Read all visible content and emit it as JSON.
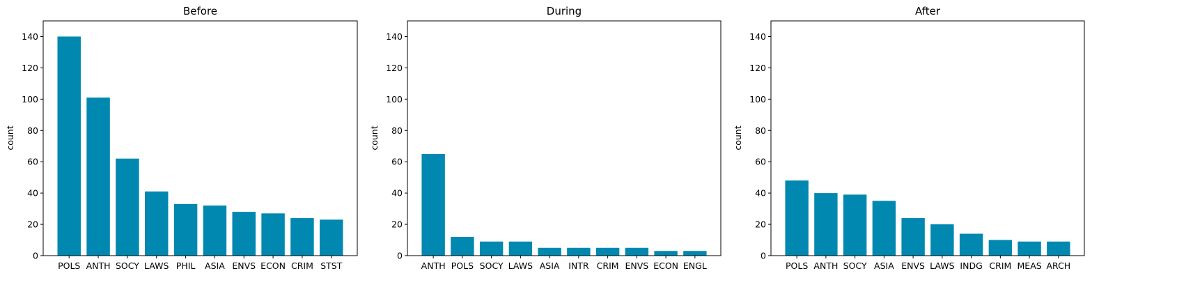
{
  "figure": {
    "bar_color": "#0088b0",
    "charts": [
      {
        "title": "Before",
        "ylabel": "count"
      },
      {
        "title": "During",
        "ylabel": "count"
      },
      {
        "title": "After",
        "ylabel": "count"
      }
    ]
  },
  "chart_data": [
    {
      "type": "bar",
      "title": "Before",
      "xlabel": "",
      "ylabel": "count",
      "ylim": [
        0,
        150
      ],
      "yticks": [
        0,
        20,
        40,
        60,
        80,
        100,
        120,
        140
      ],
      "grid": false,
      "categories": [
        "POLS",
        "ANTH",
        "SOCY",
        "LAWS",
        "PHIL",
        "ASIA",
        "ENVS",
        "ECON",
        "CRIM",
        "STST"
      ],
      "values": [
        140,
        101,
        62,
        41,
        33,
        32,
        28,
        27,
        24,
        23
      ]
    },
    {
      "type": "bar",
      "title": "During",
      "xlabel": "",
      "ylabel": "count",
      "ylim": [
        0,
        150
      ],
      "yticks": [
        0,
        20,
        40,
        60,
        80,
        100,
        120,
        140
      ],
      "grid": false,
      "categories": [
        "ANTH",
        "POLS",
        "SOCY",
        "LAWS",
        "ASIA",
        "INTR",
        "CRIM",
        "ENVS",
        "ECON",
        "ENGL"
      ],
      "values": [
        65,
        12,
        9,
        9,
        5,
        5,
        5,
        5,
        3,
        3
      ]
    },
    {
      "type": "bar",
      "title": "After",
      "xlabel": "",
      "ylabel": "count",
      "ylim": [
        0,
        150
      ],
      "yticks": [
        0,
        20,
        40,
        60,
        80,
        100,
        120,
        140
      ],
      "grid": false,
      "categories": [
        "POLS",
        "ANTH",
        "SOCY",
        "ASIA",
        "ENVS",
        "LAWS",
        "INDG",
        "CRIM",
        "MEAS",
        "ARCH"
      ],
      "values": [
        48,
        40,
        39,
        35,
        24,
        20,
        14,
        10,
        9,
        9
      ]
    }
  ]
}
